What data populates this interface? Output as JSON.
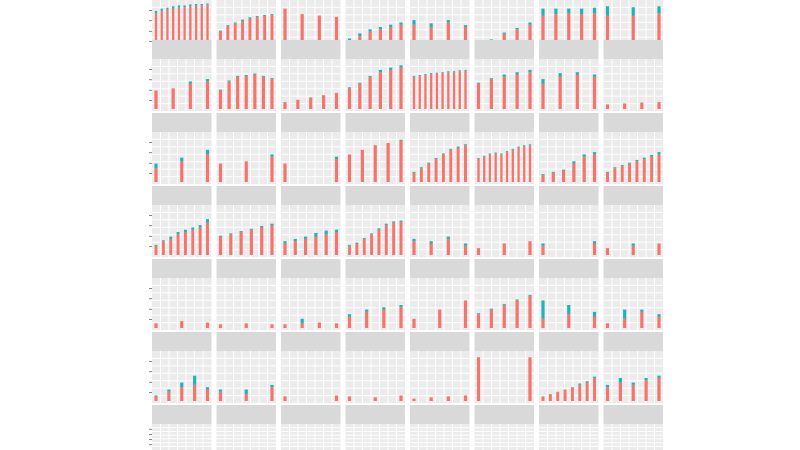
{
  "chart_data": {
    "type": "bar",
    "layout": {
      "rows": 7,
      "cols": 8,
      "facets": "small-multiples",
      "stacked": true,
      "strip": "top",
      "grid": true,
      "legend": "none"
    },
    "colors": {
      "base": "#f2766d",
      "top": "#1fb3ba",
      "panel": "#ebebeb",
      "strip": "#d9d9d9",
      "grid": "#ffffff"
    },
    "series": [
      {
        "name": ""
      },
      {
        "name": ""
      }
    ],
    "panels": [
      {
        "base": [
          0.8,
          0.85,
          0.88,
          0.9,
          0.92,
          0.93,
          0.95,
          0.96,
          0.97,
          0.98
        ],
        "top": [
          0.05,
          0.05,
          0.04,
          0.05,
          0.05,
          0.04,
          0.04,
          0.04,
          0.03,
          0.03
        ]
      },
      {
        "base": [
          0.4,
          0.52,
          0.58,
          0.63,
          0.68,
          0.72,
          0.74,
          0.76
        ],
        "top": [
          0.02,
          0.02,
          0.02,
          0.03,
          0.03,
          0.02,
          0.02,
          0.02
        ]
      },
      {
        "base": [
          0.9,
          0.78,
          0.75,
          0.72
        ],
        "top": [
          0.0,
          0.0,
          0.0,
          0.0
        ]
      },
      {
        "base": [
          0.2,
          0.3,
          0.4,
          0.45,
          0.5,
          0.55
        ],
        "top": [
          0.05,
          0.06,
          0.05,
          0.05,
          0.05,
          0.05
        ]
      },
      {
        "base": [
          0.55,
          0.5,
          0.6,
          0.5
        ],
        "top": [
          0.1,
          0.08,
          0.05,
          0.04
        ]
      },
      {
        "base": [
          0.1,
          0.2,
          0.35,
          0.45,
          0.55
        ],
        "top": [
          0.02,
          0.03,
          0.03,
          0.03,
          0.05
        ]
      },
      {
        "base": [
          0.75,
          0.78,
          0.8,
          0.78,
          0.8
        ],
        "top": [
          0.15,
          0.12,
          0.1,
          0.12,
          0.12
        ]
      },
      {
        "base": [
          0.75,
          0.75,
          0.8
        ],
        "top": [
          0.2,
          0.18,
          0.15
        ]
      },
      {
        "base": [
          0.4,
          0.45,
          0.55,
          0.6
        ],
        "top": [
          0.0,
          0.0,
          0.05,
          0.05
        ]
      },
      {
        "base": [
          0.4,
          0.6,
          0.7,
          0.72,
          0.75,
          0.7,
          0.65
        ],
        "top": [
          0.02,
          0.02,
          0.02,
          0.02,
          0.02,
          0.02,
          0.02
        ]
      },
      {
        "base": [
          0.15,
          0.2,
          0.25,
          0.3,
          0.35
        ],
        "top": [
          0.0,
          0.0,
          0.0,
          0.0,
          0.0
        ]
      },
      {
        "base": [
          0.45,
          0.55,
          0.7,
          0.8,
          0.85,
          0.9
        ],
        "top": [
          0.02,
          0.02,
          0.02,
          0.05,
          0.05,
          0.05
        ]
      },
      {
        "base": [
          0.7,
          0.72,
          0.74,
          0.76,
          0.77,
          0.78,
          0.8,
          0.8,
          0.82,
          0.83
        ],
        "top": [
          0.02,
          0.02,
          0.02,
          0.02,
          0.02,
          0.02,
          0.02,
          0.02,
          0.02,
          0.02
        ]
      },
      {
        "base": [
          0.55,
          0.65,
          0.7,
          0.75,
          0.8
        ],
        "top": [
          0.02,
          0.02,
          0.05,
          0.05,
          0.05
        ]
      },
      {
        "base": [
          0.55,
          0.7,
          0.75,
          0.7
        ],
        "top": [
          0.1,
          0.08,
          0.05,
          0.05
        ]
      },
      {
        "base": [
          0.1,
          0.12,
          0.14,
          0.15
        ],
        "top": [
          0.0,
          0.0,
          0.0,
          0.0
        ]
      },
      {
        "base": [
          0.3,
          0.45,
          0.6
        ],
        "top": [
          0.1,
          0.08,
          0.1
        ]
      },
      {
        "base": [
          0.4,
          0.45,
          0.55
        ],
        "top": [
          0.0,
          0.0,
          0.05
        ]
      },
      {
        "base": [
          0.4,
          0.5
        ],
        "top": [
          0.0,
          0.05
        ]
      },
      {
        "base": [
          0.6,
          0.7,
          0.8,
          0.85,
          0.9
        ],
        "top": [
          0.0,
          0.0,
          0.0,
          0.0,
          0.02
        ]
      },
      {
        "base": [
          0.2,
          0.3,
          0.4,
          0.5,
          0.6,
          0.7,
          0.75,
          0.8
        ],
        "top": [
          0.02,
          0.02,
          0.02,
          0.02,
          0.02,
          0.02,
          0.02,
          0.02
        ]
      },
      {
        "base": [
          0.5,
          0.55,
          0.6,
          0.62,
          0.6,
          0.65,
          0.7,
          0.75,
          0.78,
          0.8
        ],
        "top": [
          0.02,
          0.02,
          0.02,
          0.02,
          0.02,
          0.02,
          0.02,
          0.02,
          0.02,
          0.02
        ]
      },
      {
        "base": [
          0.15,
          0.2,
          0.25,
          0.4,
          0.55,
          0.6
        ],
        "top": [
          0.02,
          0.02,
          0.02,
          0.05,
          0.05,
          0.05
        ]
      },
      {
        "base": [
          0.2,
          0.3,
          0.35,
          0.4,
          0.45,
          0.5,
          0.55,
          0.6
        ],
        "top": [
          0.02,
          0.02,
          0.02,
          0.02,
          0.03,
          0.03,
          0.04,
          0.05
        ]
      },
      {
        "base": [
          0.2,
          0.3,
          0.35,
          0.45,
          0.5,
          0.55,
          0.6,
          0.7
        ],
        "top": [
          0.02,
          0.02,
          0.05,
          0.05,
          0.05,
          0.05,
          0.05,
          0.08
        ]
      },
      {
        "base": [
          0.4,
          0.45,
          0.5,
          0.55,
          0.6,
          0.65
        ],
        "top": [
          0.02,
          0.02,
          0.02,
          0.02,
          0.03,
          0.03
        ]
      },
      {
        "base": [
          0.25,
          0.3,
          0.35,
          0.4,
          0.45,
          0.5
        ],
        "top": [
          0.05,
          0.05,
          0.05,
          0.08,
          0.08,
          0.05
        ]
      },
      {
        "base": [
          0.2,
          0.25,
          0.35,
          0.45,
          0.55,
          0.65,
          0.7,
          0.72
        ],
        "top": [
          0.02,
          0.02,
          0.02,
          0.02,
          0.03,
          0.03,
          0.03,
          0.03
        ]
      },
      {
        "base": [
          0.3,
          0.25,
          0.35,
          0.2
        ],
        "top": [
          0.05,
          0.05,
          0.05,
          0.05
        ]
      },
      {
        "base": [
          0.15,
          0.25,
          0.3
        ],
        "top": [
          0.0,
          0.0,
          0.0
        ]
      },
      {
        "base": [
          0.2,
          0.25
        ],
        "top": [
          0.05,
          0.05
        ]
      },
      {
        "base": [
          0.15,
          0.2,
          0.25
        ],
        "top": [
          0.0,
          0.05,
          0.0
        ]
      },
      {
        "base": [
          0.1,
          0.15,
          0.12
        ],
        "top": [
          0.0,
          0.0,
          0.0
        ]
      },
      {
        "base": [
          0.08,
          0.1,
          0.08
        ],
        "top": [
          0.0,
          0.0,
          0.0
        ]
      },
      {
        "base": [
          0.08,
          0.1,
          0.12,
          0.1
        ],
        "top": [
          0.0,
          0.1,
          0.0,
          0.0
        ]
      },
      {
        "base": [
          0.25,
          0.35,
          0.4,
          0.45
        ],
        "top": [
          0.05,
          0.05,
          0.05,
          0.05
        ]
      },
      {
        "base": [
          0.2,
          0.4,
          0.6
        ],
        "top": [
          0.0,
          0.0,
          0.0
        ]
      },
      {
        "base": [
          0.3,
          0.4,
          0.5,
          0.6,
          0.7
        ],
        "top": [
          0.02,
          0.02,
          0.02,
          0.02,
          0.02
        ]
      },
      {
        "base": [
          0.2,
          0.3,
          0.25
        ],
        "top": [
          0.4,
          0.2,
          0.1
        ]
      },
      {
        "base": [
          0.1,
          0.2,
          0.35,
          0.25
        ],
        "top": [
          0.0,
          0.2,
          0.05,
          0.05
        ]
      },
      {
        "base": [
          0.1,
          0.2,
          0.3,
          0.35,
          0.25
        ],
        "top": [
          0.02,
          0.05,
          0.1,
          0.2,
          0.05
        ]
      },
      {
        "base": [
          0.2,
          0.15,
          0.3
        ],
        "top": [
          0.05,
          0.1,
          0.05
        ]
      },
      {
        "base": [
          0.1,
          0.12
        ],
        "top": [
          0.0,
          0.0
        ]
      },
      {
        "base": [
          0.1,
          0.08,
          0.12
        ],
        "top": [
          0.0,
          0.0,
          0.0
        ]
      },
      {
        "base": [
          0.05,
          0.08,
          0.1,
          0.12
        ],
        "top": [
          0.0,
          0.0,
          0.0,
          0.0
        ]
      },
      {
        "base": [
          0.95,
          0.95
        ],
        "top": [
          0.0,
          0.0
        ]
      },
      {
        "base": [
          0.1,
          0.15,
          0.2,
          0.25,
          0.3,
          0.35,
          0.4,
          0.5
        ],
        "top": [
          0.0,
          0.0,
          0.0,
          0.0,
          0.0,
          0.03,
          0.03,
          0.03
        ]
      },
      {
        "base": [
          0.3,
          0.4,
          0.35,
          0.45,
          0.5
        ],
        "top": [
          0.05,
          0.1,
          0.05,
          0.05,
          0.05
        ]
      },
      {
        "base": [],
        "top": []
      },
      {
        "base": [],
        "top": []
      },
      {
        "base": [],
        "top": []
      },
      {
        "base": [],
        "top": []
      },
      {
        "base": [],
        "top": []
      },
      {
        "base": [],
        "top": []
      },
      {
        "base": [],
        "top": []
      },
      {
        "base": [],
        "top": []
      }
    ]
  }
}
